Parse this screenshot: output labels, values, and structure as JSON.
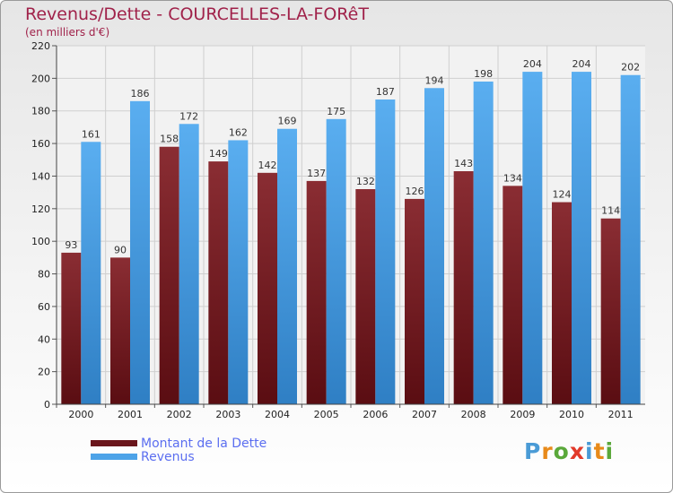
{
  "title": "Revenus/Dette - COURCELLES-LA-FORêT",
  "subtitle": "(en milliers d'€)",
  "brand": {
    "text": "Proxiti",
    "letter_colors": [
      "#4a9bd6",
      "#e88a1a",
      "#5aa83a",
      "#e23a2a",
      "#4a9bd6",
      "#e88a1a",
      "#5aa83a"
    ]
  },
  "chart_data": {
    "type": "bar",
    "categories": [
      "2000",
      "2001",
      "2002",
      "2003",
      "2004",
      "2005",
      "2006",
      "2007",
      "2008",
      "2009",
      "2010",
      "2011"
    ],
    "series": [
      {
        "name": "Montant de la Dette",
        "values": [
          93,
          90,
          158,
          149,
          142,
          137,
          132,
          126,
          143,
          134,
          124,
          114
        ],
        "color": "#7a1f26"
      },
      {
        "name": "Revenus",
        "values": [
          161,
          186,
          172,
          162,
          169,
          175,
          187,
          194,
          198,
          204,
          204,
          202
        ],
        "color": "#4da3e8"
      }
    ],
    "ylim": [
      0,
      220
    ],
    "yticks": [
      0,
      20,
      40,
      60,
      80,
      100,
      120,
      140,
      160,
      180,
      200,
      220
    ],
    "grid": true,
    "legend_position": "bottom-left"
  }
}
